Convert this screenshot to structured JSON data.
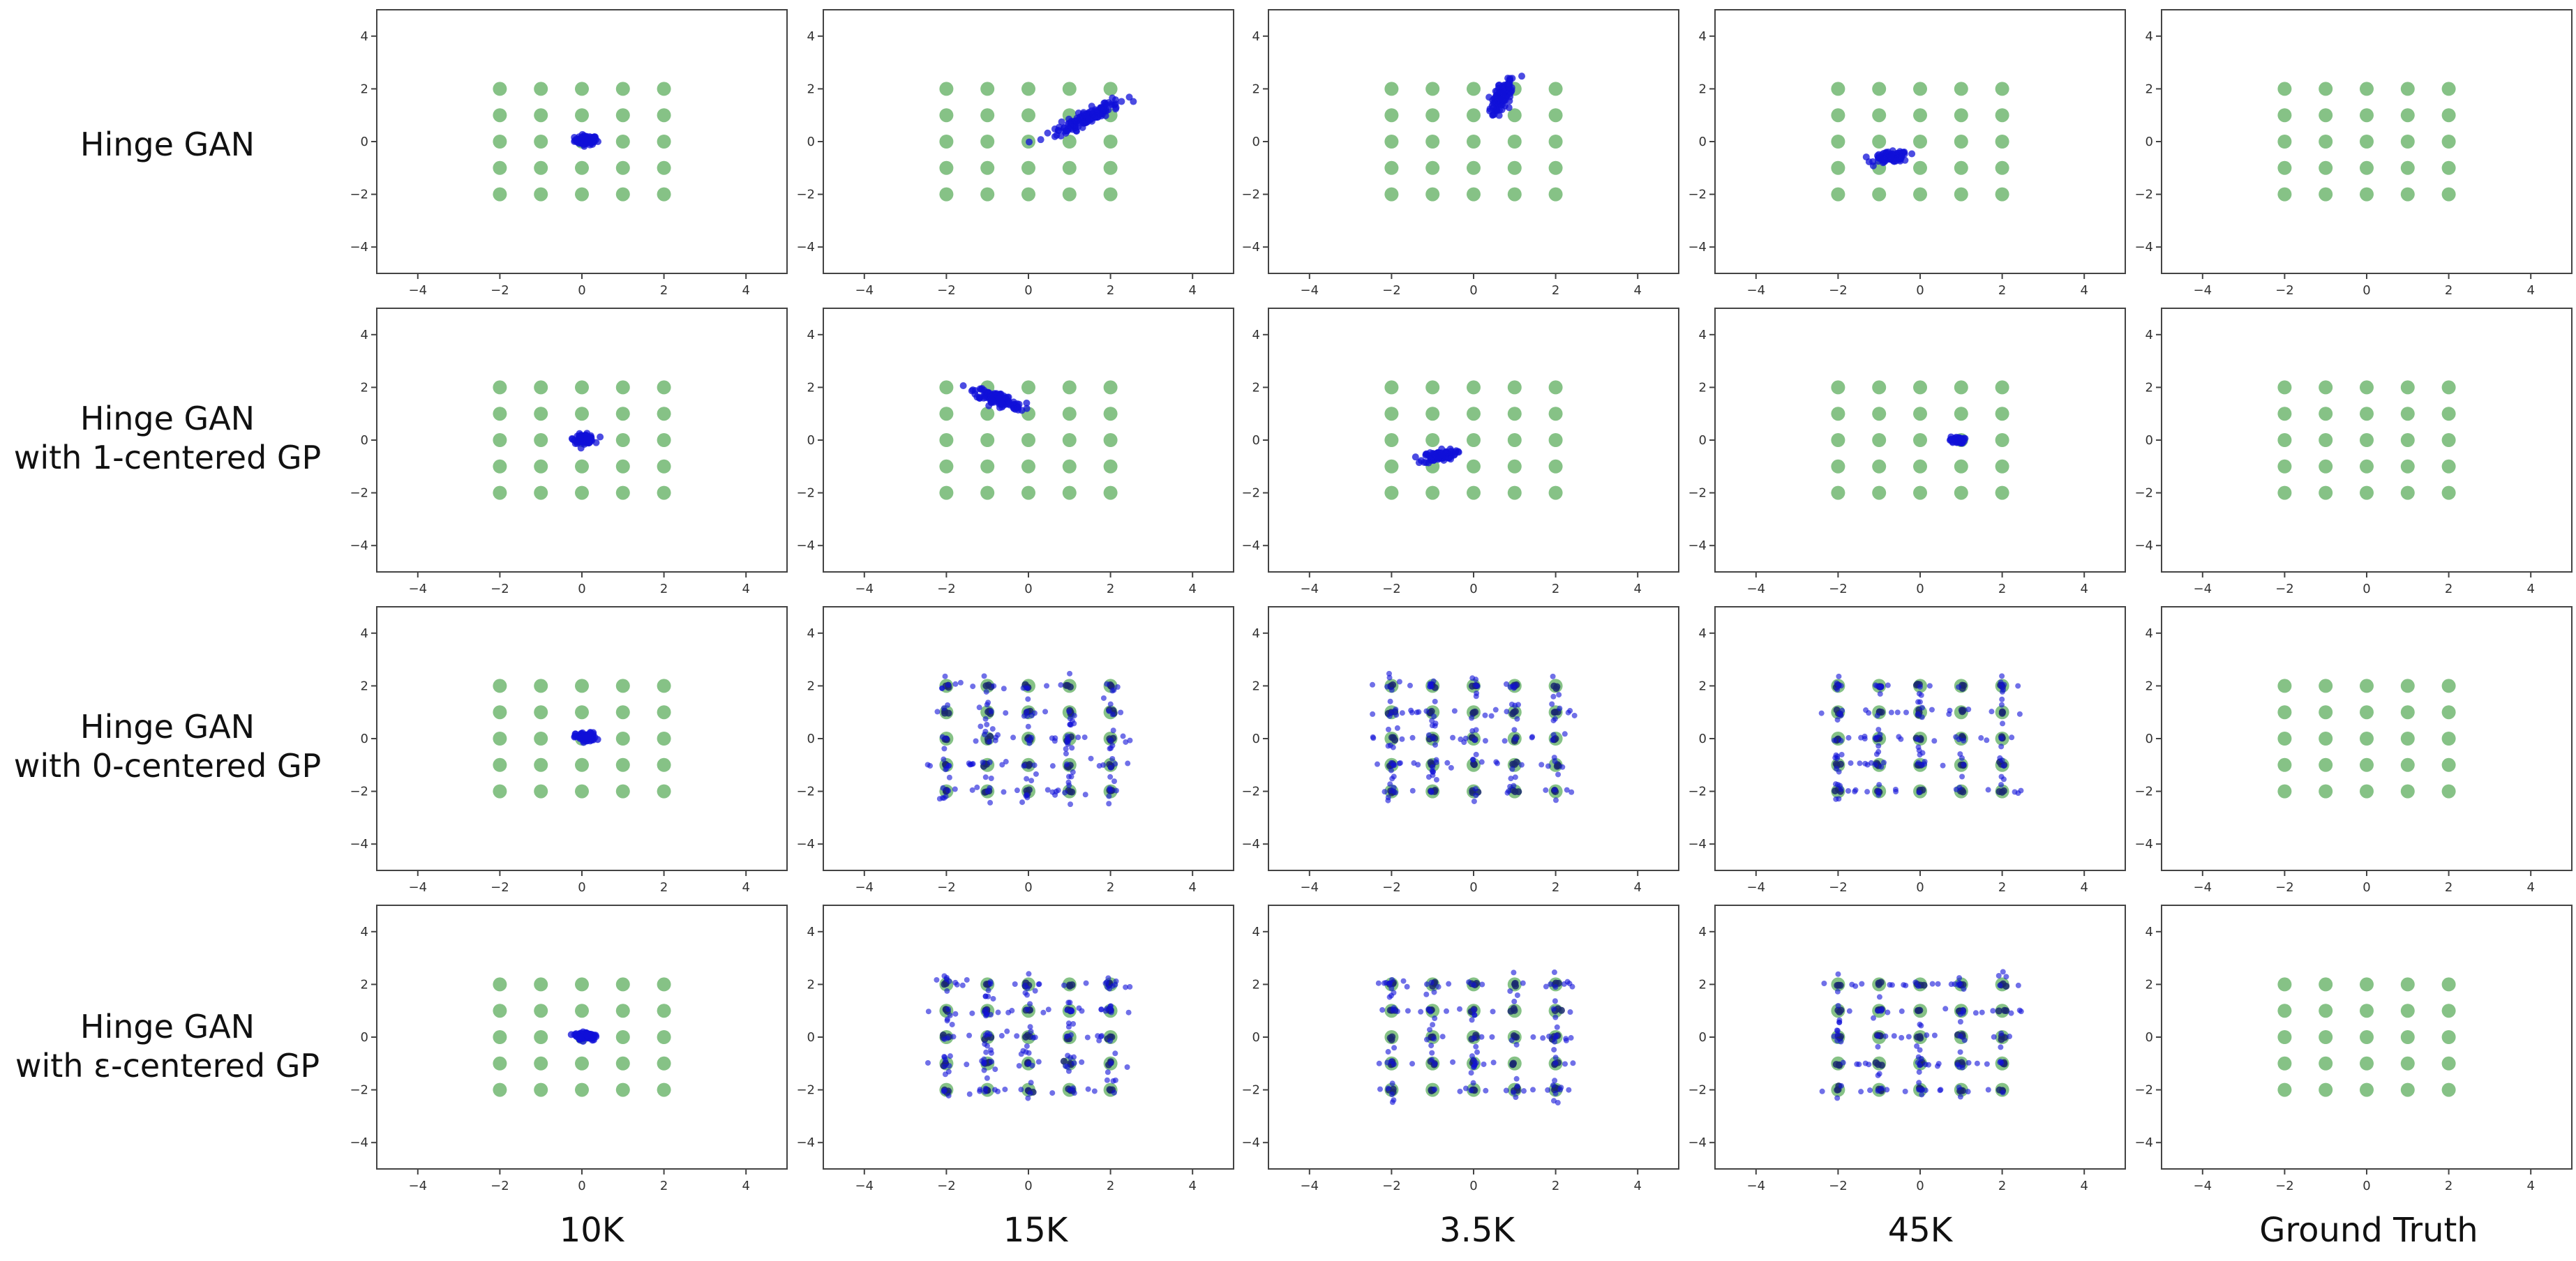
{
  "figure": {
    "row_labels": [
      {
        "line1": "Hinge GAN",
        "line2": ""
      },
      {
        "line1": "Hinge GAN",
        "line2": "with 1-centered GP"
      },
      {
        "line1": "Hinge GAN",
        "line2": "with 0-centered GP"
      },
      {
        "line1": "Hinge GAN",
        "line2": "with ε-centered GP"
      }
    ],
    "column_labels": [
      "10K",
      "15K",
      "3.5K",
      "45K",
      "Ground Truth"
    ]
  },
  "colors": {
    "real_points": "#7fbf7f",
    "generated_points": "#1010d8",
    "axes": "#444444"
  },
  "chart_data": {
    "type": "scatter",
    "xlim": [
      -5,
      5
    ],
    "ylim": [
      -5,
      5
    ],
    "xticks": [
      -4,
      -2,
      0,
      2,
      4
    ],
    "yticks": [
      -4,
      -2,
      0,
      2,
      4
    ],
    "grid": false,
    "real_distribution": {
      "x": [
        -2,
        -1,
        0,
        1,
        2
      ],
      "y": [
        -2,
        -1,
        0,
        1,
        2
      ]
    },
    "panels": [
      [
        {
          "mode": "collapse",
          "clusters": [
            {
              "cx": 0.1,
              "cy": 0.05,
              "len": 0.55,
              "wid": 0.35,
              "angle": 0,
              "n": 90
            }
          ]
        },
        {
          "mode": "collapse",
          "clusters": [
            {
              "cx": 1.4,
              "cy": 0.9,
              "len": 1.9,
              "wid": 0.45,
              "angle": 38,
              "n": 160
            }
          ]
        },
        {
          "mode": "collapse",
          "clusters": [
            {
              "cx": 0.7,
              "cy": 1.75,
              "len": 1.5,
              "wid": 0.35,
              "angle": 72,
              "n": 120
            }
          ]
        },
        {
          "mode": "collapse",
          "clusters": [
            {
              "cx": -0.7,
              "cy": -0.6,
              "len": 0.85,
              "wid": 0.4,
              "angle": 8,
              "n": 100
            }
          ]
        },
        {
          "mode": "none"
        }
      ],
      [
        {
          "mode": "collapse",
          "clusters": [
            {
              "cx": 0.05,
              "cy": 0.05,
              "len": 0.5,
              "wid": 0.35,
              "angle": 0,
              "n": 80
            }
          ]
        },
        {
          "mode": "collapse",
          "clusters": [
            {
              "cx": -0.75,
              "cy": 1.55,
              "len": 1.35,
              "wid": 0.45,
              "angle": -30,
              "n": 140
            }
          ]
        },
        {
          "mode": "collapse",
          "clusters": [
            {
              "cx": -0.85,
              "cy": -0.6,
              "len": 0.85,
              "wid": 0.4,
              "angle": 15,
              "n": 90
            }
          ]
        },
        {
          "mode": "collapse",
          "clusters": [
            {
              "cx": 0.9,
              "cy": 0.0,
              "len": 0.35,
              "wid": 0.25,
              "angle": 0,
              "n": 40
            }
          ]
        },
        {
          "mode": "none"
        }
      ],
      [
        {
          "mode": "collapse",
          "clusters": [
            {
              "cx": 0.1,
              "cy": 0.05,
              "len": 0.5,
              "wid": 0.35,
              "angle": 0,
              "n": 80
            }
          ]
        },
        {
          "mode": "spread",
          "n": 160,
          "spread": 0.25
        },
        {
          "mode": "spread",
          "n": 150,
          "spread": 0.2
        },
        {
          "mode": "spread",
          "n": 130,
          "spread": 0.17
        },
        {
          "mode": "none"
        }
      ],
      [
        {
          "mode": "collapse",
          "clusters": [
            {
              "cx": 0.1,
              "cy": 0.05,
              "len": 0.55,
              "wid": 0.35,
              "angle": 0,
              "n": 80
            }
          ]
        },
        {
          "mode": "spread",
          "n": 170,
          "spread": 0.27
        },
        {
          "mode": "spread",
          "n": 130,
          "spread": 0.17
        },
        {
          "mode": "spread",
          "n": 120,
          "spread": 0.15
        },
        {
          "mode": "none"
        }
      ]
    ]
  }
}
